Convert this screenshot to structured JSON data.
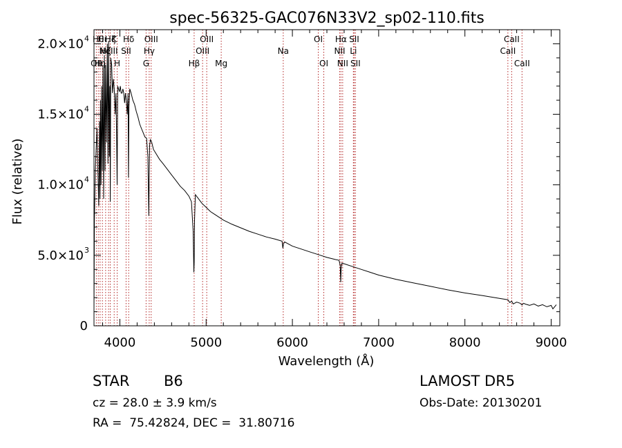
{
  "chart_data": {
    "type": "line",
    "title": "spec-56325-GAC076N33V2_sp02-110.fits",
    "xlabel": "Wavelength (Å)",
    "ylabel": "Flux (relative)",
    "xlim": [
      3700,
      9100
    ],
    "ylim": [
      0,
      21000
    ],
    "x_ticks": [
      4000,
      5000,
      6000,
      7000,
      8000,
      9000
    ],
    "x_tick_labels": [
      "4000",
      "5000",
      "6000",
      "7000",
      "8000",
      "9000"
    ],
    "y_ticks": [
      0,
      5000,
      10000,
      15000,
      20000
    ],
    "y_tick_labels": [
      {
        "mantissa": "0",
        "exp": ""
      },
      {
        "mantissa": "5.0×10",
        "exp": "3"
      },
      {
        "mantissa": "1.0×10",
        "exp": "4"
      },
      {
        "mantissa": "1.5×10",
        "exp": "4"
      },
      {
        "mantissa": "2.0×10",
        "exp": "4"
      }
    ],
    "grid": false,
    "line_color": "#000000",
    "marker_color": "#b22222",
    "series": [
      {
        "x": [
          3700,
          3705,
          3715,
          3725,
          3735,
          3745,
          3755,
          3765,
          3770,
          3775,
          3782,
          3790,
          3797,
          3804,
          3812,
          3820,
          3828,
          3835,
          3845,
          3855,
          3862,
          3870,
          3878,
          3884,
          3889,
          3895,
          3905,
          3915,
          3925,
          3935,
          3945,
          3955,
          3962,
          3968,
          3975,
          3985,
          3995,
          4005,
          4015,
          4025,
          4035,
          4045,
          4055,
          4065,
          4075,
          4085,
          4095,
          4100,
          4105,
          4115,
          4130,
          4150,
          4170,
          4190,
          4210,
          4230,
          4250,
          4270,
          4290,
          4310,
          4325,
          4335,
          4340,
          4345,
          4355,
          4370,
          4390,
          4420,
          4460,
          4500,
          4550,
          4600,
          4650,
          4700,
          4750,
          4800,
          4830,
          4850,
          4858,
          4862,
          4866,
          4875,
          4900,
          4950,
          5000,
          5050,
          5100,
          5150,
          5200,
          5300,
          5400,
          5500,
          5600,
          5700,
          5800,
          5880,
          5890,
          5896,
          5910,
          6000,
          6100,
          6200,
          6300,
          6400,
          6500,
          6540,
          6555,
          6560,
          6565,
          6575,
          6600,
          6700,
          6800,
          6900,
          7000,
          7200,
          7400,
          7600,
          7800,
          8000,
          8200,
          8400,
          8498,
          8520,
          8542,
          8560,
          8600,
          8640,
          8662,
          8680,
          8700,
          8750,
          8800,
          8850,
          8900,
          8950,
          9000,
          9020,
          9040,
          9060
        ],
        "y": [
          1200,
          7500,
          11000,
          12500,
          14000,
          11000,
          8500,
          14500,
          9000,
          16000,
          10000,
          17000,
          11000,
          18500,
          9000,
          19200,
          11000,
          18500,
          13000,
          20000,
          11500,
          20200,
          12000,
          17000,
          8800,
          19000,
          18500,
          16500,
          17500,
          16800,
          15000,
          16500,
          13500,
          10000,
          17000,
          16800,
          16600,
          17000,
          16500,
          16500,
          16800,
          16500,
          15800,
          16500,
          16000,
          15000,
          16500,
          10500,
          15500,
          16800,
          16500,
          16000,
          15700,
          15200,
          14800,
          14300,
          14000,
          13700,
          13400,
          13300,
          12000,
          7800,
          10800,
          12800,
          13200,
          13000,
          12500,
          12200,
          11800,
          11500,
          11100,
          10700,
          10300,
          9900,
          9600,
          9200,
          8800,
          6700,
          3800,
          4500,
          7500,
          9300,
          9100,
          8700,
          8400,
          8100,
          7900,
          7700,
          7500,
          7200,
          6950,
          6700,
          6500,
          6300,
          6150,
          6000,
          5500,
          5800,
          5950,
          5650,
          5450,
          5250,
          5050,
          4850,
          4700,
          4650,
          4300,
          3100,
          4000,
          4450,
          4400,
          4200,
          4000,
          3800,
          3600,
          3300,
          3050,
          2800,
          2550,
          2330,
          2150,
          1950,
          1850,
          1650,
          1750,
          1550,
          1680,
          1600,
          1480,
          1600,
          1540,
          1450,
          1550,
          1400,
          1500,
          1350,
          1450,
          1200,
          1350,
          1500
        ]
      }
    ],
    "line_markers": [
      {
        "wavelength": 3727,
        "label": "OII",
        "row": 3
      },
      {
        "wavelength": 3750,
        "label": "Hθ",
        "row": 1
      },
      {
        "wavelength": 3771,
        "label": "Hη",
        "row": 3
      },
      {
        "wavelength": 3798,
        "label": "Hι",
        "row": 1
      },
      {
        "wavelength": 3835,
        "label": "Hζ",
        "row": 2
      },
      {
        "wavelength": 3869,
        "label": "NeIII",
        "row": 2
      },
      {
        "wavelength": 3889,
        "label": "Hζ",
        "row": 1
      },
      {
        "wavelength": 3934,
        "label": "K",
        "row": 1
      },
      {
        "wavelength": 3969,
        "label": "H",
        "row": 3
      },
      {
        "wavelength": 4072,
        "label": "SII",
        "row": 2
      },
      {
        "wavelength": 4102,
        "label": "Hδ",
        "row": 1
      },
      {
        "wavelength": 4304,
        "label": "G",
        "row": 3
      },
      {
        "wavelength": 4340,
        "label": "Hγ",
        "row": 2
      },
      {
        "wavelength": 4363,
        "label": "OIII",
        "row": 1
      },
      {
        "wavelength": 4861,
        "label": "Hβ",
        "row": 3
      },
      {
        "wavelength": 4959,
        "label": "OIII",
        "row": 2
      },
      {
        "wavelength": 5007,
        "label": "OIII",
        "row": 1
      },
      {
        "wavelength": 5175,
        "label": "Mg",
        "row": 3
      },
      {
        "wavelength": 5894,
        "label": "Na",
        "row": 2
      },
      {
        "wavelength": 6300,
        "label": "OI",
        "row": 1
      },
      {
        "wavelength": 6364,
        "label": "OI",
        "row": 3
      },
      {
        "wavelength": 6548,
        "label": "NII",
        "row": 2
      },
      {
        "wavelength": 6563,
        "label": "Hα",
        "row": 1
      },
      {
        "wavelength": 6583,
        "label": "NII",
        "row": 3
      },
      {
        "wavelength": 6707,
        "label": "Li",
        "row": 2
      },
      {
        "wavelength": 6716,
        "label": "SII",
        "row": 1
      },
      {
        "wavelength": 6731,
        "label": "SII",
        "row": 3
      },
      {
        "wavelength": 8498,
        "label": "CaII",
        "row": 2
      },
      {
        "wavelength": 8542,
        "label": "CaII",
        "row": 1
      },
      {
        "wavelength": 8662,
        "label": "CaII",
        "row": 3
      }
    ]
  },
  "info": {
    "class_label": "STAR",
    "subclass": "B6",
    "cz_text": "cz = 28.0 ± 3.9 km/s",
    "radec_text": "RA =  75.42824, DEC =  31.80716",
    "survey": "LAMOST DR5",
    "obs_date": "Obs-Date: 20130201"
  }
}
